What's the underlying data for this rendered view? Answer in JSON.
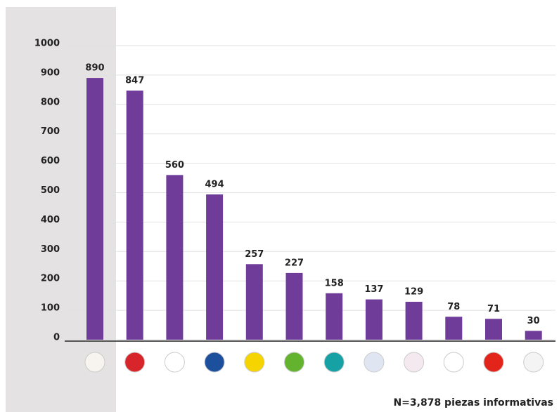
{
  "chart_data": {
    "type": "bar",
    "categories": [
      null,
      null,
      null,
      null,
      null,
      null,
      null,
      null,
      null,
      null,
      null,
      null
    ],
    "values": [
      890,
      847,
      560,
      494,
      257,
      227,
      158,
      137,
      129,
      78,
      71,
      30
    ],
    "color": "#6f3c9a",
    "ylim": [
      0,
      1000
    ],
    "yticks": [
      0,
      100,
      200,
      300,
      400,
      500,
      600,
      700,
      800,
      900,
      1000
    ],
    "grid": true,
    "annotation": "N=3,878 piezas informativas"
  }
}
